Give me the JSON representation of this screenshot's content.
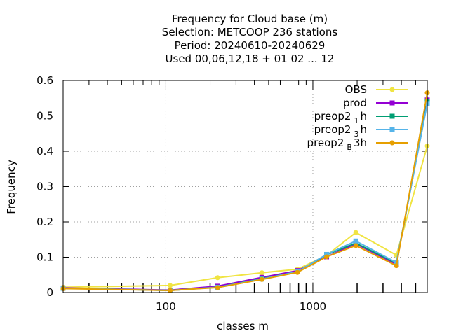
{
  "chart_data": {
    "type": "line",
    "title_lines": [
      "Frequency  for Cloud base (m)",
      "Selection: METCOOP    236 stations",
      "Period: 20240610-20240629",
      "Used  00,06,12,18 + 01 02 ... 12"
    ],
    "xlabel": "classes m",
    "ylabel": "Frequency",
    "x_scale": "log",
    "xlim": [
      20,
      6000
    ],
    "ylim": [
      0,
      0.6
    ],
    "x_ticks": [
      100,
      1000
    ],
    "x_tick_labels": [
      "100",
      "1000"
    ],
    "y_ticks": [
      0,
      0.1,
      0.2,
      0.3,
      0.4,
      0.5,
      0.6
    ],
    "y_tick_labels": [
      "0",
      "0.1",
      "0.2",
      "0.3",
      "0.4",
      "0.5",
      "0.6"
    ],
    "grid": true,
    "legend_position": "top-right",
    "x": [
      20,
      107,
      225,
      450,
      785,
      1240,
      1960,
      3700,
      6000
    ],
    "series": [
      {
        "name": "OBS",
        "color": "#f0e442",
        "marker": "circle",
        "values": [
          0.015,
          0.02,
          0.042,
          0.056,
          0.066,
          0.105,
          0.17,
          0.106,
          0.415
        ]
      },
      {
        "name": "prod",
        "color": "#9400d3",
        "marker": "square",
        "values": [
          0.013,
          0.007,
          0.018,
          0.043,
          0.062,
          0.101,
          0.138,
          0.08,
          0.545
        ]
      },
      {
        "name": "preop2",
        "sub": "1",
        "suffix": "h",
        "color": "#009e73",
        "marker": "square",
        "values": [
          0.012,
          0.006,
          0.015,
          0.039,
          0.059,
          0.107,
          0.14,
          0.083,
          0.54
        ]
      },
      {
        "name": "preop2",
        "sub": "3",
        "suffix": "h",
        "color": "#56b4e9",
        "marker": "square",
        "values": [
          0.012,
          0.006,
          0.015,
          0.038,
          0.059,
          0.108,
          0.146,
          0.085,
          0.535
        ]
      },
      {
        "name": "preop2",
        "sub": "B",
        "suffix": "3h",
        "color": "#e69f00",
        "marker": "circle",
        "values": [
          0.011,
          0.006,
          0.014,
          0.037,
          0.057,
          0.101,
          0.133,
          0.076,
          0.565
        ]
      }
    ]
  }
}
